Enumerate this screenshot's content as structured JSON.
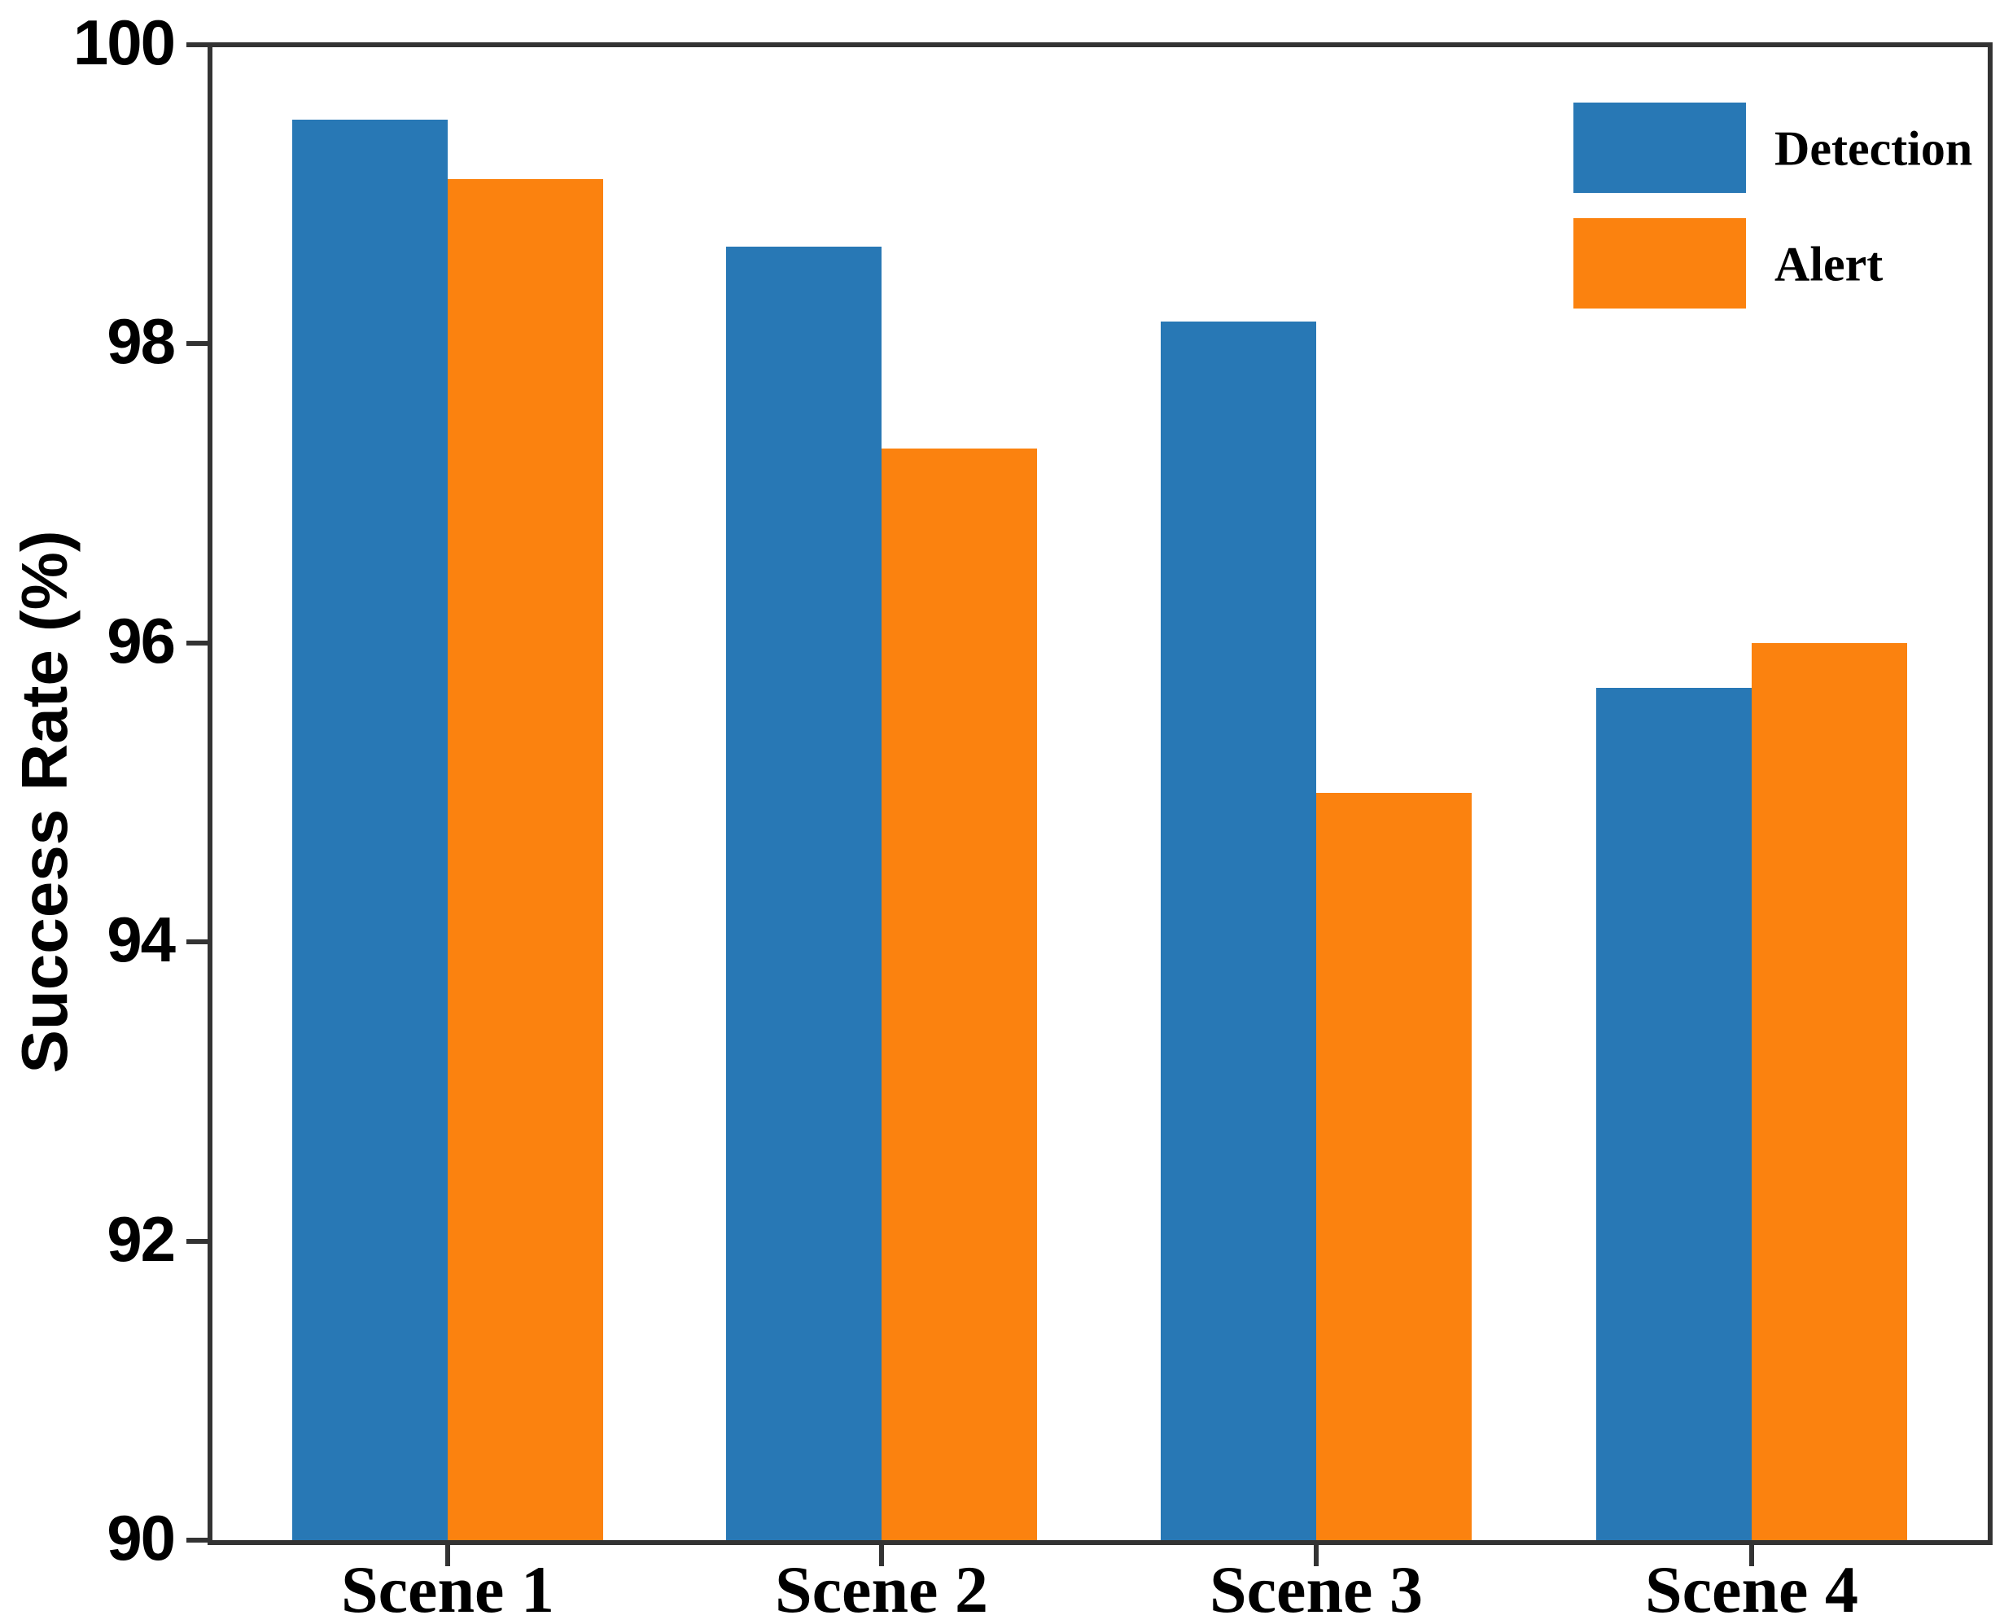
{
  "chart_data": {
    "type": "bar",
    "title": "",
    "xlabel": "",
    "ylabel": "Success Rate (%)",
    "categories": [
      "Scene 1",
      "Scene 2",
      "Scene 3",
      "Scene 4"
    ],
    "series": [
      {
        "name": "Detection",
        "color": "#2878b5",
        "values": [
          99.5,
          98.65,
          98.15,
          95.7
        ]
      },
      {
        "name": "Alert",
        "color": "#fb820f",
        "values": [
          99.1,
          97.3,
          95.0,
          96.0
        ]
      }
    ],
    "ylim": [
      90,
      100
    ],
    "yticks": [
      100,
      98,
      96,
      94,
      92,
      90
    ],
    "ytick_labels": [
      "100",
      "98",
      "96",
      "94",
      "92",
      "90"
    ],
    "grid": false,
    "legend_position": "upper right",
    "legend": [
      "Detection",
      "Alert"
    ],
    "axis_color": "#333333",
    "text_color": "#000000"
  }
}
